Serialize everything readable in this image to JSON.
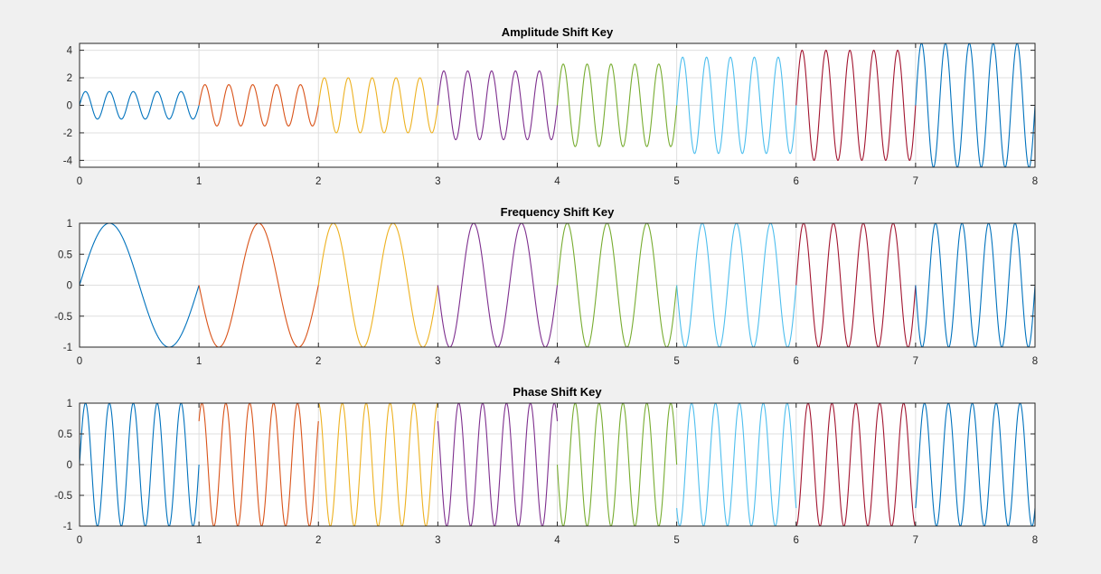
{
  "figure": {
    "background": "#f0f0f0"
  },
  "chart_data": [
    {
      "type": "line",
      "title": "Amplitude Shift Key",
      "xlabel": "",
      "ylabel": "",
      "xlim": [
        0,
        8
      ],
      "ylim": [
        -4.5,
        4.5
      ],
      "xticks": [
        "0",
        "1",
        "2",
        "3",
        "4",
        "5",
        "6",
        "7",
        "8"
      ],
      "yticks": [
        "4",
        "2",
        "0",
        "-2",
        "-4"
      ],
      "ytick_values": [
        4,
        2,
        0,
        -2,
        -4
      ],
      "grid": true,
      "legend": "none",
      "signal": "amplitude * sin(2*pi*frequency*t + phase)",
      "series": [
        {
          "x": [
            0,
            1
          ],
          "amplitude": 1.0,
          "frequency": 5,
          "phase": 0,
          "color": "#0072bd"
        },
        {
          "x": [
            1,
            2
          ],
          "amplitude": 1.5,
          "frequency": 5,
          "phase": 0,
          "color": "#d95319"
        },
        {
          "x": [
            2,
            3
          ],
          "amplitude": 2.0,
          "frequency": 5,
          "phase": 0,
          "color": "#edb120"
        },
        {
          "x": [
            3,
            4
          ],
          "amplitude": 2.5,
          "frequency": 5,
          "phase": 0,
          "color": "#7e2f8e"
        },
        {
          "x": [
            4,
            5
          ],
          "amplitude": 3.0,
          "frequency": 5,
          "phase": 0,
          "color": "#77ac30"
        },
        {
          "x": [
            5,
            6
          ],
          "amplitude": 3.5,
          "frequency": 5,
          "phase": 0,
          "color": "#4dbeee"
        },
        {
          "x": [
            6,
            7
          ],
          "amplitude": 4.0,
          "frequency": 5,
          "phase": 0,
          "color": "#a2142f"
        },
        {
          "x": [
            7,
            8
          ],
          "amplitude": 4.5,
          "frequency": 5,
          "phase": 0,
          "color": "#0072bd"
        }
      ]
    },
    {
      "type": "line",
      "title": "Frequency Shift Key",
      "xlabel": "",
      "ylabel": "",
      "xlim": [
        0,
        8
      ],
      "ylim": [
        -1,
        1
      ],
      "xticks": [
        "0",
        "1",
        "2",
        "3",
        "4",
        "5",
        "6",
        "7",
        "8"
      ],
      "yticks": [
        "1",
        "0.5",
        "0",
        "-0.5",
        "-1"
      ],
      "ytick_values": [
        1,
        0.5,
        0,
        -0.5,
        -1
      ],
      "grid": true,
      "legend": "none",
      "signal": "amplitude * sin(2*pi*frequency*t + phase)",
      "series": [
        {
          "x": [
            0,
            1
          ],
          "amplitude": 1,
          "frequency": 1,
          "phase": 0,
          "color": "#0072bd"
        },
        {
          "x": [
            1,
            2
          ],
          "amplitude": 1,
          "frequency": 1.5,
          "phase": 0,
          "color": "#d95319"
        },
        {
          "x": [
            2,
            3
          ],
          "amplitude": 1,
          "frequency": 2,
          "phase": 0,
          "color": "#edb120"
        },
        {
          "x": [
            3,
            4
          ],
          "amplitude": 1,
          "frequency": 2.5,
          "phase": 0,
          "color": "#7e2f8e"
        },
        {
          "x": [
            4,
            5
          ],
          "amplitude": 1,
          "frequency": 3,
          "phase": 0,
          "color": "#77ac30"
        },
        {
          "x": [
            5,
            6
          ],
          "amplitude": 1,
          "frequency": 3.5,
          "phase": 0,
          "color": "#4dbeee"
        },
        {
          "x": [
            6,
            7
          ],
          "amplitude": 1,
          "frequency": 4,
          "phase": 0,
          "color": "#a2142f"
        },
        {
          "x": [
            7,
            8
          ],
          "amplitude": 1,
          "frequency": 4.5,
          "phase": 0,
          "color": "#0072bd"
        }
      ]
    },
    {
      "type": "line",
      "title": "Phase Shift Key",
      "xlabel": "",
      "ylabel": "",
      "xlim": [
        0,
        8
      ],
      "ylim": [
        -1,
        1
      ],
      "xticks": [
        "0",
        "1",
        "2",
        "3",
        "4",
        "5",
        "6",
        "7",
        "8"
      ],
      "yticks": [
        "1",
        "0.5",
        "0",
        "-0.5",
        "-1"
      ],
      "ytick_values": [
        1,
        0.5,
        0,
        -0.5,
        -1
      ],
      "grid": true,
      "legend": "none",
      "signal": "amplitude * sin(2*pi*frequency*t + phase)",
      "series": [
        {
          "x": [
            0,
            1
          ],
          "amplitude": 1,
          "frequency": 5,
          "phase": 0,
          "color": "#0072bd"
        },
        {
          "x": [
            1,
            2
          ],
          "amplitude": 1,
          "frequency": 5,
          "phase": 0.785,
          "color": "#d95319"
        },
        {
          "x": [
            2,
            3
          ],
          "amplitude": 1,
          "frequency": 5,
          "phase": 1.571,
          "color": "#edb120"
        },
        {
          "x": [
            3,
            4
          ],
          "amplitude": 1,
          "frequency": 5,
          "phase": 2.356,
          "color": "#7e2f8e"
        },
        {
          "x": [
            4,
            5
          ],
          "amplitude": 1,
          "frequency": 5,
          "phase": 3.142,
          "color": "#77ac30"
        },
        {
          "x": [
            5,
            6
          ],
          "amplitude": 1,
          "frequency": 5,
          "phase": 3.927,
          "color": "#4dbeee"
        },
        {
          "x": [
            6,
            7
          ],
          "amplitude": 1,
          "frequency": 5,
          "phase": 4.712,
          "color": "#a2142f"
        },
        {
          "x": [
            7,
            8
          ],
          "amplitude": 1,
          "frequency": 5,
          "phase": 5.498,
          "color": "#0072bd"
        }
      ]
    }
  ]
}
